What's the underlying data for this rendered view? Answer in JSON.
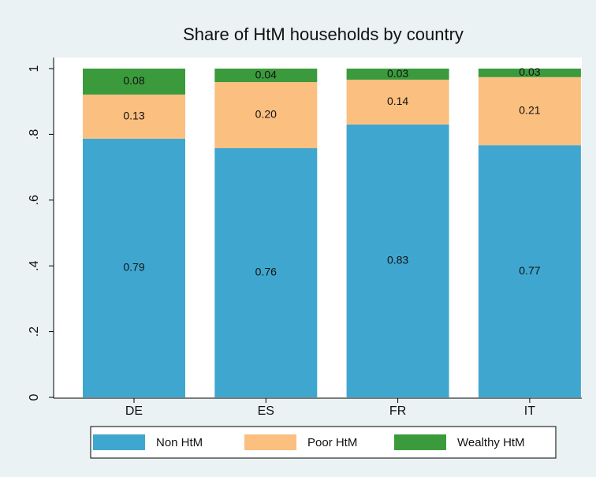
{
  "chart_data": {
    "type": "stacked-bar",
    "title": "Share of HtM households by country",
    "categories": [
      "DE",
      "ES",
      "FR",
      "IT"
    ],
    "series": [
      {
        "name": "Non HtM",
        "color": "#3fa7cf",
        "values": [
          0.787,
          0.758,
          0.83,
          0.767
        ],
        "value_labels": [
          "0.79",
          "0.76",
          "0.83",
          "0.77"
        ]
      },
      {
        "name": "Poor HtM",
        "color": "#fbbf80",
        "values": [
          0.134,
          0.201,
          0.136,
          0.207
        ],
        "value_labels": [
          "0.13",
          "0.20",
          "0.14",
          "0.21"
        ]
      },
      {
        "name": "Wealthy HtM",
        "color": "#3b9b3c",
        "values": [
          0.079,
          0.041,
          0.034,
          0.026
        ],
        "value_labels": [
          "0.08",
          "0.04",
          "0.03",
          "0.03"
        ]
      }
    ],
    "ylim": [
      0,
      1
    ],
    "yticks": [
      0,
      {
        "value": 0.2,
        "label": ".2"
      },
      {
        "value": 0.4,
        "label": ".4"
      },
      {
        "value": 0.6,
        "label": ".6"
      },
      {
        "value": 0.8,
        "label": ".8"
      },
      1
    ],
    "grid": false,
    "legend": "bottom"
  }
}
